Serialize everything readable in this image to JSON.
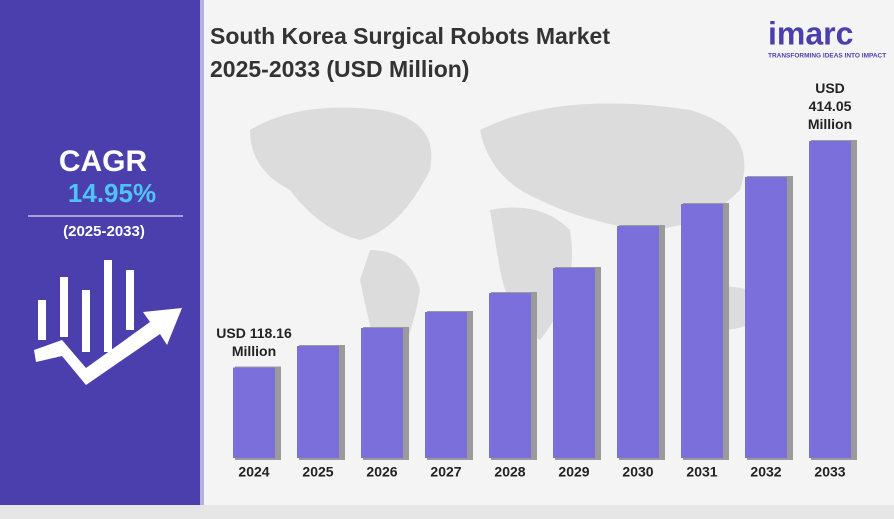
{
  "chart_data": {
    "type": "bar",
    "title": "South Korea Surgical Robots Market 2025-2033 (USD Million)",
    "categories": [
      "2024",
      "2025",
      "2026",
      "2027",
      "2028",
      "2029",
      "2030",
      "2031",
      "2032",
      "2033"
    ],
    "values": [
      118.16,
      146.3,
      169.8,
      190.7,
      215.5,
      248.2,
      303,
      331.8,
      367,
      414.05
    ],
    "value_labels": [
      "USD 118.16 Million",
      null,
      null,
      null,
      null,
      null,
      null,
      null,
      null,
      "USD 414.05 Million"
    ],
    "color": "#7b6fdc",
    "ylim": [
      0,
      450
    ]
  },
  "cagr": {
    "label": "CAGR",
    "value": "14.95%",
    "period": "(2025-2033)"
  },
  "logo": {
    "name": "imarc",
    "tagline": "TRANSFORMING IDEAS INTO IMPACT"
  }
}
